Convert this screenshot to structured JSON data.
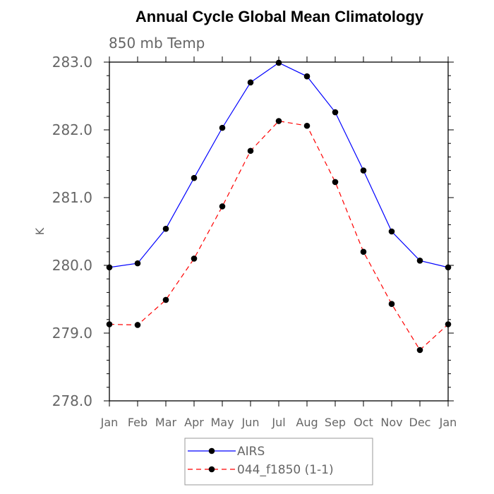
{
  "chart_data": {
    "type": "line",
    "title": "Annual Cycle Global Mean Climatology",
    "subtitle": "850 mb Temp",
    "ylabel": "K",
    "xlabel": "",
    "x": [
      "Jan",
      "Feb",
      "Mar",
      "Apr",
      "May",
      "Jun",
      "Jul",
      "Aug",
      "Sep",
      "Oct",
      "Nov",
      "Dec",
      "Jan"
    ],
    "ylim": [
      278.0,
      283.0
    ],
    "yticks": [
      "278.0",
      "279.0",
      "280.0",
      "281.0",
      "282.0",
      "283.0"
    ],
    "series": [
      {
        "name": "AIRS",
        "color": "#0000ff",
        "dash": "solid",
        "values": [
          279.97,
          280.03,
          280.54,
          281.29,
          282.03,
          282.7,
          282.99,
          282.79,
          282.26,
          281.4,
          280.5,
          280.07,
          279.97
        ]
      },
      {
        "name": "044_f1850 (1-1)",
        "color": "#ff0000",
        "dash": "dashed",
        "values": [
          279.13,
          279.12,
          279.49,
          280.1,
          280.87,
          281.69,
          282.13,
          282.06,
          281.23,
          280.2,
          279.43,
          278.75,
          279.13
        ]
      }
    ],
    "grid": false,
    "legend_position": "bottom"
  }
}
